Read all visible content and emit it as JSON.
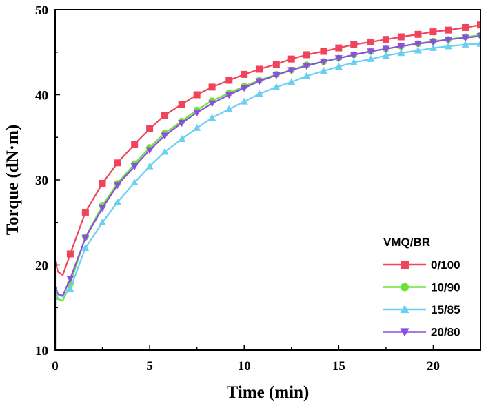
{
  "chart_data": {
    "type": "line",
    "xlabel": "Time (min)",
    "ylabel": "Torque (dN·m)",
    "xlim": [
      0,
      22.5
    ],
    "ylim": [
      10,
      50
    ],
    "xticks": [
      0,
      5,
      10,
      15,
      20
    ],
    "yticks": [
      10,
      20,
      30,
      40,
      50
    ],
    "grid": false,
    "legend": {
      "title": "VMQ/BR",
      "placement": "bottom-right"
    },
    "x": [
      0,
      0.15,
      0.4,
      0.8,
      1.6,
      2.5,
      3.3,
      4.2,
      5.0,
      5.8,
      6.7,
      7.5,
      8.3,
      9.2,
      10.0,
      10.8,
      11.7,
      12.5,
      13.3,
      14.2,
      15.0,
      15.8,
      16.7,
      17.5,
      18.3,
      19.2,
      20.0,
      20.8,
      21.7,
      22.5
    ],
    "series": [
      {
        "name": "0/100",
        "color": "#f0445a",
        "marker": "square",
        "values": [
          20.5,
          19.2,
          18.8,
          21.3,
          26.2,
          29.6,
          32.0,
          34.2,
          36.0,
          37.6,
          38.9,
          40.0,
          40.9,
          41.7,
          42.4,
          43.0,
          43.6,
          44.2,
          44.7,
          45.1,
          45.5,
          45.9,
          46.2,
          46.5,
          46.8,
          47.1,
          47.4,
          47.6,
          47.9,
          48.2
        ]
      },
      {
        "name": "10/90",
        "color": "#6fe23a",
        "marker": "circle",
        "values": [
          17.2,
          16.0,
          15.8,
          17.8,
          23.3,
          27.0,
          29.6,
          31.9,
          33.8,
          35.5,
          36.9,
          38.2,
          39.3,
          40.2,
          41.0,
          41.7,
          42.4,
          42.9,
          43.5,
          43.9,
          44.3,
          44.7,
          45.1,
          45.4,
          45.7,
          46.0,
          46.3,
          46.5,
          46.8,
          47.0
        ]
      },
      {
        "name": "15/85",
        "color": "#6ccff2",
        "marker": "triangle-up",
        "values": [
          15.8,
          16.5,
          16.3,
          17.2,
          22.0,
          25.0,
          27.4,
          29.7,
          31.6,
          33.3,
          34.8,
          36.1,
          37.3,
          38.3,
          39.2,
          40.1,
          40.9,
          41.5,
          42.2,
          42.8,
          43.3,
          43.8,
          44.2,
          44.6,
          44.9,
          45.2,
          45.5,
          45.7,
          45.9,
          46.0
        ]
      },
      {
        "name": "20/80",
        "color": "#8a4fe0",
        "marker": "triangle-down",
        "values": [
          17.5,
          16.6,
          16.4,
          18.4,
          23.2,
          26.7,
          29.4,
          31.6,
          33.5,
          35.2,
          36.7,
          37.9,
          39.0,
          40.0,
          40.8,
          41.6,
          42.3,
          42.9,
          43.4,
          43.9,
          44.3,
          44.7,
          45.1,
          45.4,
          45.7,
          46.0,
          46.2,
          46.5,
          46.7,
          46.9
        ]
      }
    ]
  }
}
